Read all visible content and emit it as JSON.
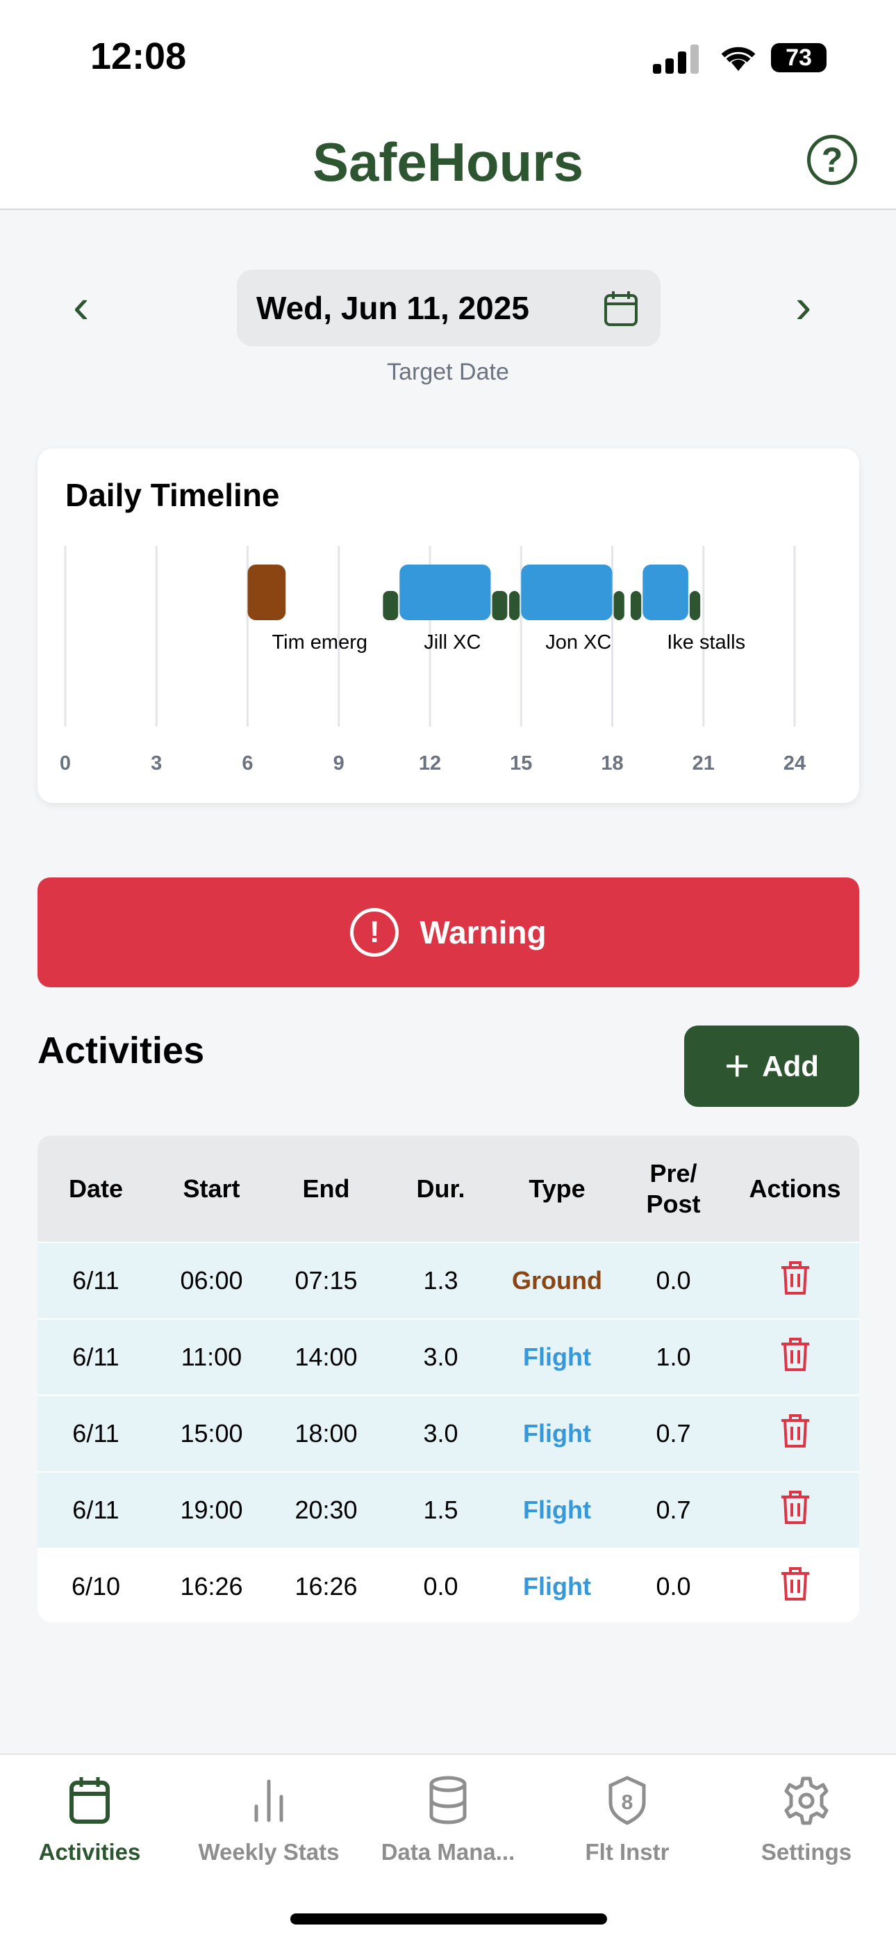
{
  "status_bar": {
    "time": "12:08",
    "battery": "73"
  },
  "header": {
    "title": "SafeHours",
    "help_icon": "question-circle-icon"
  },
  "date_nav": {
    "date": "Wed, Jun 11, 2025",
    "label": "Target Date",
    "prev_icon": "chevron-left-icon",
    "next_icon": "chevron-right-icon",
    "calendar_icon": "calendar-icon"
  },
  "timeline": {
    "title": "Daily Timeline"
  },
  "chart_data": {
    "type": "gantt",
    "title": "Daily Timeline",
    "xlim": [
      0,
      24
    ],
    "xticks": [
      "0",
      "3",
      "6",
      "9",
      "12",
      "15",
      "18",
      "21",
      "24"
    ],
    "grid": true,
    "colors": {
      "Ground": "#8b4513",
      "Flight": "#3498db",
      "pre_post": "#2c5530"
    },
    "activities": [
      {
        "label": "Tim emerg",
        "type": "Ground",
        "start": 6.0,
        "end": 7.25,
        "pre_post": 0.0
      },
      {
        "label": "Jill XC",
        "type": "Flight",
        "start": 11.0,
        "end": 14.0,
        "pre_post": 1.0
      },
      {
        "label": "Jon XC",
        "type": "Flight",
        "start": 15.0,
        "end": 18.0,
        "pre_post": 0.7
      },
      {
        "label": "Ike stalls",
        "type": "Flight",
        "start": 19.0,
        "end": 20.5,
        "pre_post": 0.7
      }
    ]
  },
  "warning": {
    "label": "Warning",
    "icon": "exclamation-circle-icon",
    "color": "#dc3545"
  },
  "activities": {
    "title": "Activities",
    "add_label": "Add",
    "columns": [
      "Date",
      "Start",
      "End",
      "Dur.",
      "Type",
      "Pre/\nPost",
      "Actions"
    ],
    "rows": [
      {
        "date": "6/11",
        "start": "06:00",
        "end": "07:15",
        "dur": "1.3",
        "type": "Ground",
        "prepost": "0.0"
      },
      {
        "date": "6/11",
        "start": "11:00",
        "end": "14:00",
        "dur": "3.0",
        "type": "Flight",
        "prepost": "1.0"
      },
      {
        "date": "6/11",
        "start": "15:00",
        "end": "18:00",
        "dur": "3.0",
        "type": "Flight",
        "prepost": "0.7"
      },
      {
        "date": "6/11",
        "start": "19:00",
        "end": "20:30",
        "dur": "1.5",
        "type": "Flight",
        "prepost": "0.7"
      },
      {
        "date": "6/10",
        "start": "16:26",
        "end": "16:26",
        "dur": "0.0",
        "type": "Flight",
        "prepost": "0.0"
      }
    ]
  },
  "tabs": [
    {
      "label": "Activities",
      "icon": "calendar-icon",
      "active": true
    },
    {
      "label": "Weekly Stats",
      "icon": "bar-chart-icon",
      "active": false
    },
    {
      "label": "Data Mana...",
      "icon": "database-icon",
      "active": false
    },
    {
      "label": "Flt Instr",
      "icon": "shield-8-icon",
      "active": false
    },
    {
      "label": "Settings",
      "icon": "gear-icon",
      "active": false
    }
  ],
  "accent": "#2c5530"
}
